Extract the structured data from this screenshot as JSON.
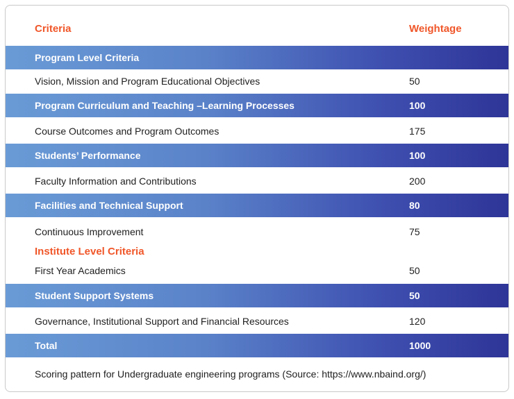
{
  "header": {
    "criteria": "Criteria",
    "weightage": "Weightage"
  },
  "rows": [
    {
      "criteria": "Program Level Criteria",
      "weight": ""
    },
    {
      "criteria": "Vision, Mission and Program Educational Objectives",
      "weight": "50"
    },
    {
      "criteria": "Program Curriculum and Teaching –Learning Processes",
      "weight": "100"
    },
    {
      "criteria": "Course Outcomes and Program Outcomes",
      "weight": "175"
    },
    {
      "criteria": "Students’ Performance",
      "weight": "100"
    },
    {
      "criteria": "Faculty Information and Contributions",
      "weight": "200"
    },
    {
      "criteria": "Facilities and Technical Support",
      "weight": "80"
    },
    {
      "criteria": "Continuous Improvement",
      "weight": "75"
    }
  ],
  "institute_heading": "Institute Level Criteria",
  "institute_rows": [
    {
      "criteria": "First Year Academics",
      "weight": "50"
    },
    {
      "criteria": "Student Support Systems",
      "weight": "50"
    },
    {
      "criteria": "Governance, Institutional Support and Financial Resources",
      "weight": "120"
    }
  ],
  "total": {
    "criteria": "Total",
    "weight": "1000"
  },
  "caption": "Scoring pattern for Undergraduate engineering programs (Source: https://www.nbaind.org/)",
  "colors": {
    "accent": "#f0572a",
    "band_start": "#6a9bd6",
    "band_end": "#2e3597"
  }
}
